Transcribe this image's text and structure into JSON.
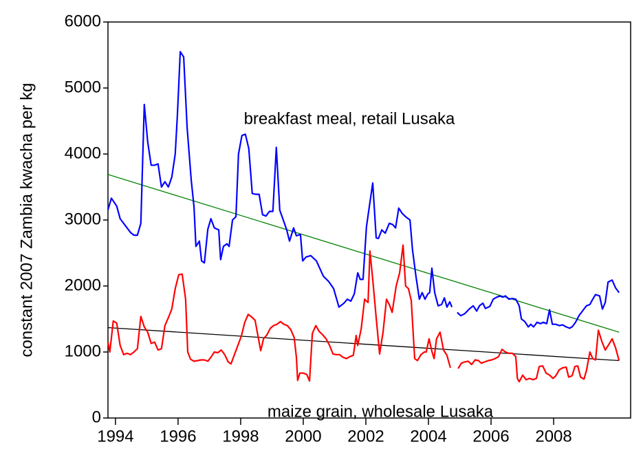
{
  "chart_data": {
    "type": "line",
    "y_label": "constant 2007 Zambia kwacha per kg",
    "xlim": [
      1993.76,
      2010.46
    ],
    "xticks": [
      1994,
      1996,
      1998,
      2000,
      2002,
      2004,
      2006,
      2008
    ],
    "ylim": [
      0,
      6000
    ],
    "yticks": [
      0,
      1000,
      2000,
      3000,
      4000,
      5000,
      6000
    ],
    "grid": false,
    "series": [
      {
        "name": "breakfast meal, retail Lusaka",
        "color": "#0000ff",
        "x": [
          1993.76,
          1993.87,
          1994.04,
          1994.15,
          1994.48,
          1994.59,
          1994.7,
          1994.81,
          1994.92,
          1995.03,
          1995.14,
          1995.25,
          1995.36,
          1995.47,
          1995.58,
          1995.69,
          1995.8,
          1995.91,
          1995.98,
          1996.07,
          1996.18,
          1996.29,
          1996.42,
          1996.51,
          1996.57,
          1996.68,
          1996.75,
          1996.84,
          1996.95,
          1997.05,
          1997.16,
          1997.3,
          1997.36,
          1997.45,
          1997.56,
          1997.63,
          1997.74,
          1997.85,
          1997.93,
          1998.04,
          1998.15,
          1998.26,
          1998.37,
          1998.48,
          1998.59,
          1998.7,
          1998.81,
          1998.92,
          1999.03,
          1999.14,
          1999.25,
          1999.36,
          1999.47,
          1999.56,
          1999.69,
          1999.78,
          1999.91,
          1999.98,
          2000.09,
          2000.24,
          2000.42,
          2000.64,
          2000.81,
          2000.97,
          2001.14,
          2001.3,
          2001.41,
          2001.52,
          2001.63,
          2001.74,
          2001.82,
          2001.91,
          2002.02,
          2002.11,
          2002.22,
          2002.33,
          2002.4,
          2002.51,
          2002.62,
          2002.75,
          2002.86,
          2002.95,
          2003.05,
          2003.16,
          2003.27,
          2003.41,
          2003.49,
          2003.6,
          2003.71,
          2003.8,
          2003.89,
          2003.98,
          2004.04,
          2004.11,
          2004.2,
          2004.31,
          2004.42,
          2004.51,
          2004.59,
          2004.68,
          2004.75,
          2004.85,
          2004.92,
          2005.03,
          2005.16,
          2005.3,
          2005.43,
          2005.54,
          2005.63,
          2005.74,
          2005.82,
          2005.96,
          2006.07,
          2006.18,
          2006.29,
          2006.37,
          2006.46,
          2006.57,
          2006.68,
          2006.79,
          2006.9,
          2006.97,
          2007.08,
          2007.19,
          2007.27,
          2007.36,
          2007.47,
          2007.58,
          2007.67,
          2007.78,
          2007.87,
          2007.96,
          2008.07,
          2008.18,
          2008.29,
          2008.4,
          2008.51,
          2008.59,
          2008.7,
          2008.81,
          2008.95,
          2009.05,
          2009.16,
          2009.25,
          2009.34,
          2009.47,
          2009.56,
          2009.65,
          2009.74,
          2009.87,
          2009.98,
          2010.09
        ],
        "values": [
          3156,
          3330,
          3210,
          3020,
          2810,
          2770,
          2770,
          2950,
          4750,
          4180,
          3830,
          3830,
          3850,
          3500,
          3580,
          3500,
          3650,
          4000,
          4600,
          5550,
          5470,
          4400,
          3600,
          3200,
          2600,
          2680,
          2380,
          2350,
          2860,
          3020,
          2880,
          2850,
          2400,
          2600,
          2640,
          2600,
          3000,
          3050,
          4000,
          4280,
          4300,
          4080,
          3400,
          3390,
          3390,
          3080,
          3060,
          3130,
          3130,
          4100,
          3150,
          3000,
          2850,
          2680,
          2880,
          2760,
          2780,
          2380,
          2440,
          2460,
          2380,
          2150,
          2070,
          1960,
          1680,
          1740,
          1800,
          1770,
          1880,
          2200,
          2100,
          2100,
          2900,
          3200,
          3560,
          2730,
          2720,
          2850,
          2800,
          2950,
          2930,
          2880,
          3180,
          3100,
          3050,
          3000,
          2550,
          2150,
          1800,
          1900,
          1800,
          1880,
          1900,
          2270,
          1900,
          1700,
          1720,
          1820,
          1680,
          1760,
          1680,
          null,
          1600,
          1550,
          1580,
          1650,
          1700,
          1620,
          1700,
          1740,
          1660,
          1690,
          1800,
          1830,
          1850,
          1830,
          1850,
          1800,
          1810,
          1800,
          1700,
          1500,
          1460,
          1380,
          1420,
          1380,
          1450,
          1430,
          1450,
          1430,
          1640,
          1420,
          1420,
          1400,
          1410,
          1380,
          1360,
          1380,
          1450,
          1550,
          1640,
          1700,
          1720,
          1800,
          1870,
          1850,
          1650,
          1750,
          2060,
          2090,
          1970,
          1900
        ]
      },
      {
        "name": "maize grain, wholesale Lusaka",
        "color": "#ff0000",
        "x": [
          1993.76,
          1993.82,
          1993.93,
          1994.04,
          1994.15,
          1994.26,
          1994.37,
          1994.48,
          1994.59,
          1994.7,
          1994.81,
          1994.92,
          1995.03,
          1995.14,
          1995.25,
          1995.36,
          1995.47,
          1995.58,
          1995.69,
          1995.8,
          1995.91,
          1996.02,
          1996.13,
          1996.24,
          1996.31,
          1996.4,
          1996.51,
          1996.62,
          1996.73,
          1996.84,
          1996.95,
          1997.05,
          1997.16,
          1997.27,
          1997.38,
          1997.49,
          1997.6,
          1997.69,
          1997.8,
          1997.91,
          1998.02,
          1998.13,
          1998.24,
          1998.35,
          1998.46,
          1998.57,
          1998.64,
          1998.73,
          1998.84,
          1998.95,
          1999.05,
          1999.16,
          1999.27,
          1999.38,
          1999.49,
          1999.6,
          1999.71,
          1999.78,
          1999.82,
          1999.89,
          2000.0,
          2000.11,
          2000.2,
          2000.29,
          2000.4,
          2000.51,
          2000.62,
          2000.73,
          2000.84,
          2000.95,
          2001.05,
          2001.16,
          2001.27,
          2001.38,
          2001.49,
          2001.6,
          2001.69,
          2001.74,
          2001.85,
          2001.96,
          2002.07,
          2002.13,
          2002.22,
          2002.33,
          2002.44,
          2002.55,
          2002.66,
          2002.75,
          2002.84,
          2002.97,
          2003.08,
          2003.19,
          2003.27,
          2003.36,
          2003.45,
          2003.56,
          2003.65,
          2003.76,
          2003.87,
          2003.93,
          2004.02,
          2004.11,
          2004.18,
          2004.26,
          2004.37,
          2004.48,
          2004.59,
          2004.7,
          2004.85,
          2004.95,
          2005.05,
          2005.16,
          2005.27,
          2005.38,
          2005.49,
          2005.6,
          2005.69,
          2005.8,
          2005.91,
          2006.02,
          2006.13,
          2006.24,
          2006.35,
          2006.46,
          2006.57,
          2006.68,
          2006.79,
          2006.84,
          2006.9,
          2007.01,
          2007.12,
          2007.23,
          2007.34,
          2007.45,
          2007.54,
          2007.65,
          2007.76,
          2007.87,
          2007.98,
          2008.07,
          2008.18,
          2008.29,
          2008.4,
          2008.48,
          2008.59,
          2008.68,
          2008.77,
          2008.86,
          2008.97,
          2009.05,
          2009.16,
          2009.25,
          2009.34,
          2009.43,
          2009.54,
          2009.65,
          2009.76,
          2009.87,
          2009.98,
          2010.09
        ],
        "values": [
          1150,
          1000,
          1470,
          1440,
          1100,
          960,
          980,
          960,
          1000,
          1050,
          1540,
          1380,
          1300,
          1130,
          1150,
          1030,
          1050,
          1400,
          1520,
          1650,
          1960,
          2170,
          2180,
          1800,
          1000,
          890,
          860,
          870,
          880,
          880,
          860,
          920,
          1000,
          990,
          1030,
          960,
          850,
          820,
          960,
          1100,
          1240,
          1450,
          1570,
          1530,
          1480,
          1200,
          1020,
          1200,
          1260,
          1360,
          1400,
          1420,
          1460,
          1420,
          1400,
          1340,
          1220,
          920,
          570,
          680,
          680,
          660,
          560,
          1280,
          1400,
          1310,
          1260,
          1200,
          1100,
          970,
          960,
          960,
          920,
          900,
          930,
          950,
          1250,
          1100,
          1350,
          1800,
          1750,
          2530,
          2100,
          1520,
          970,
          1300,
          1800,
          1720,
          1600,
          2000,
          2200,
          2620,
          2000,
          1960,
          1780,
          900,
          870,
          960,
          1000,
          1000,
          1200,
          1010,
          900,
          1200,
          1300,
          1030,
          950,
          760,
          null,
          750,
          830,
          850,
          860,
          810,
          880,
          870,
          830,
          850,
          870,
          880,
          900,
          930,
          1040,
          1000,
          980,
          980,
          930,
          600,
          550,
          650,
          580,
          600,
          580,
          600,
          780,
          790,
          680,
          650,
          600,
          640,
          730,
          760,
          770,
          620,
          640,
          780,
          790,
          620,
          590,
          720,
          1000,
          900,
          880,
          1330,
          1160,
          1030,
          1110,
          1200,
          1060,
          870
        ]
      }
    ],
    "trend_lines": [
      {
        "color": "#008000",
        "x": [
          1993.76,
          2010.09
        ],
        "values": [
          3690,
          1300
        ]
      },
      {
        "color": "#000000",
        "x": [
          1993.76,
          2010.09
        ],
        "values": [
          1370,
          870
        ]
      }
    ]
  }
}
